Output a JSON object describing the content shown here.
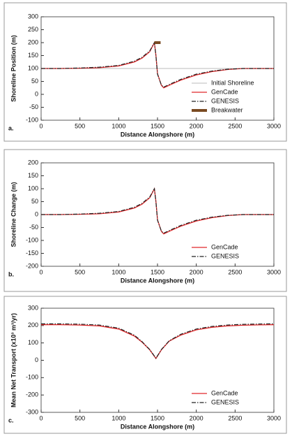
{
  "chart_data": [
    {
      "type": "line",
      "panel_label": "a.",
      "xlabel": "Distance Alongshore (m)",
      "ylabel": "Shoreline Position (m)",
      "xlim": [
        0,
        3000
      ],
      "xticks": [
        0,
        500,
        1000,
        1500,
        2000,
        2500,
        3000
      ],
      "ylim": [
        -100,
        300
      ],
      "yticks": [
        -100,
        -50,
        0,
        50,
        100,
        150,
        200,
        250,
        300
      ],
      "legend": "lower right",
      "series": [
        {
          "name": "Initial Shoreline",
          "color": "#bbbbbb",
          "style": "solid",
          "width": 1,
          "x": [
            0,
            3000
          ],
          "values": [
            100,
            100
          ]
        },
        {
          "name": "GenCade",
          "color": "#e0282a",
          "style": "solid",
          "width": 1.3,
          "x": [
            0,
            250,
            500,
            750,
            1000,
            1200,
            1300,
            1400,
            1460,
            1480,
            1500,
            1550,
            1580,
            1650,
            1800,
            2000,
            2200,
            2400,
            2600,
            2800,
            3000
          ],
          "values": [
            100,
            100,
            101,
            103,
            110,
            125,
            140,
            165,
            200,
            150,
            80,
            35,
            25,
            35,
            55,
            75,
            88,
            96,
            100,
            100,
            100
          ]
        },
        {
          "name": "GENESIS",
          "color": "#222222",
          "style": "dash-dot",
          "width": 1.2,
          "x": [
            0,
            250,
            500,
            750,
            1000,
            1200,
            1300,
            1400,
            1460,
            1480,
            1500,
            1550,
            1580,
            1650,
            1800,
            2000,
            2200,
            2400,
            2600,
            2800,
            3000
          ],
          "values": [
            100,
            100,
            102,
            105,
            112,
            128,
            143,
            168,
            200,
            148,
            78,
            36,
            28,
            38,
            58,
            78,
            90,
            97,
            100,
            100,
            100
          ]
        },
        {
          "name": "Breakwater",
          "color": "#7a4a22",
          "style": "solid",
          "width": 4,
          "x": [
            1460,
            1540
          ],
          "values": [
            200,
            200
          ]
        }
      ]
    },
    {
      "type": "line",
      "panel_label": "b.",
      "xlabel": "Distance Alongshore (m)",
      "ylabel": "Shoreline Change (m)",
      "xlim": [
        0,
        3000
      ],
      "xticks": [
        0,
        500,
        1000,
        1500,
        2000,
        2500,
        3000
      ],
      "ylim": [
        -200,
        200
      ],
      "yticks": [
        -200,
        -150,
        -100,
        -50,
        0,
        50,
        100,
        150,
        200
      ],
      "legend": "lower right",
      "series": [
        {
          "name": "GenCade",
          "color": "#e0282a",
          "style": "solid",
          "width": 1.3,
          "x": [
            0,
            250,
            500,
            750,
            1000,
            1200,
            1300,
            1400,
            1460,
            1480,
            1500,
            1550,
            1580,
            1650,
            1800,
            2000,
            2200,
            2400,
            2600,
            2800,
            3000
          ],
          "values": [
            0,
            0,
            1,
            3,
            10,
            25,
            40,
            65,
            100,
            50,
            -20,
            -65,
            -75,
            -65,
            -45,
            -25,
            -12,
            -4,
            0,
            0,
            0
          ]
        },
        {
          "name": "GENESIS",
          "color": "#222222",
          "style": "dash-dot",
          "width": 1.2,
          "x": [
            0,
            250,
            500,
            750,
            1000,
            1200,
            1300,
            1400,
            1460,
            1480,
            1500,
            1550,
            1580,
            1650,
            1800,
            2000,
            2200,
            2400,
            2600,
            2800,
            3000
          ],
          "values": [
            0,
            0,
            2,
            5,
            12,
            28,
            43,
            68,
            100,
            48,
            -22,
            -64,
            -72,
            -62,
            -42,
            -22,
            -10,
            -3,
            0,
            0,
            0
          ]
        }
      ]
    },
    {
      "type": "line",
      "panel_label": "c.",
      "xlabel": "Distance Alongshore (m)",
      "ylabel": "Mean Net Transport (x10³ m³/yr)",
      "xlim": [
        0,
        3000
      ],
      "xticks": [
        0,
        500,
        1000,
        1500,
        2000,
        2500,
        3000
      ],
      "ylim": [
        -300,
        300
      ],
      "yticks": [
        -300,
        -200,
        -100,
        0,
        100,
        200,
        300
      ],
      "legend": "lower right",
      "series": [
        {
          "name": "GenCade",
          "color": "#e0282a",
          "style": "solid",
          "width": 1.3,
          "x": [
            0,
            250,
            500,
            750,
            1000,
            1200,
            1300,
            1400,
            1480,
            1550,
            1650,
            1800,
            2000,
            2200,
            2400,
            2600,
            2800,
            3000
          ],
          "values": [
            205,
            205,
            203,
            198,
            180,
            140,
            105,
            60,
            10,
            60,
            110,
            145,
            175,
            190,
            198,
            202,
            204,
            205
          ]
        },
        {
          "name": "GENESIS",
          "color": "#222222",
          "style": "dash-dot",
          "width": 1.2,
          "x": [
            0,
            250,
            500,
            750,
            1000,
            1200,
            1300,
            1400,
            1480,
            1550,
            1650,
            1800,
            2000,
            2200,
            2400,
            2600,
            2800,
            3000
          ],
          "values": [
            210,
            210,
            208,
            203,
            185,
            145,
            108,
            62,
            12,
            62,
            112,
            150,
            180,
            195,
            203,
            207,
            209,
            210
          ]
        }
      ]
    }
  ]
}
